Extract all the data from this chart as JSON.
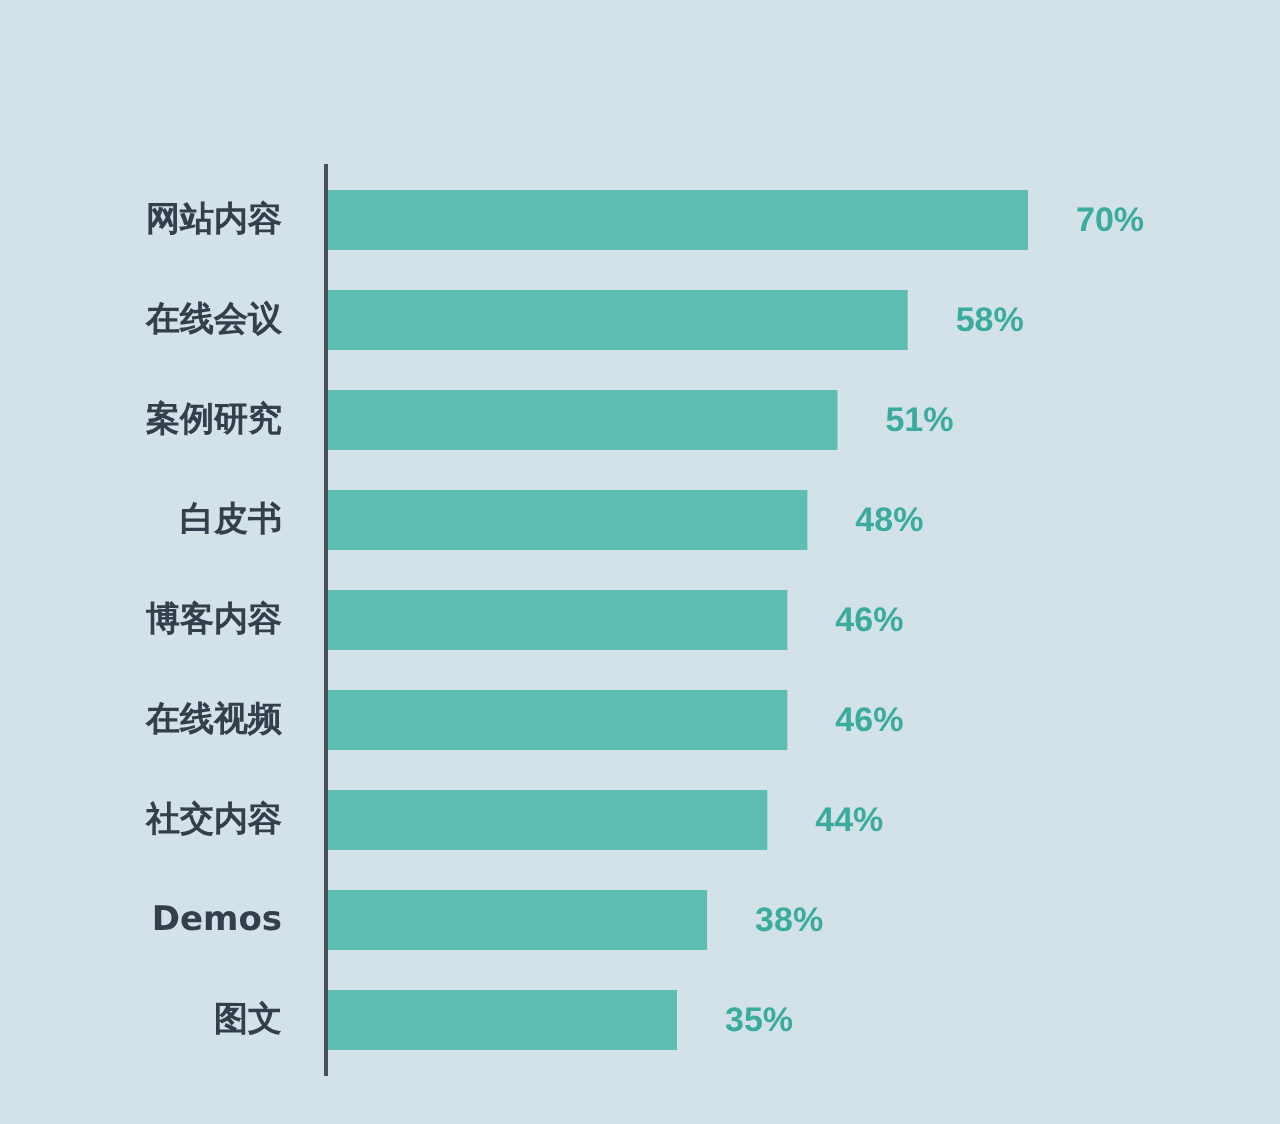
{
  "chart_data": {
    "type": "bar",
    "orientation": "horizontal",
    "data_labels": true,
    "categories": [
      "网站内容",
      "在线会议",
      "案例研究",
      "白皮书",
      "博客内容",
      "在线视频",
      "社交内容",
      "Demos",
      "图文"
    ],
    "values": [
      70,
      58,
      51,
      48,
      46,
      46,
      44,
      38,
      35
    ],
    "value_labels": [
      "70%",
      "58%",
      "51%",
      "48%",
      "46%",
      "46%",
      "44%",
      "38%",
      "35%"
    ],
    "color": "#5dbdb2"
  }
}
